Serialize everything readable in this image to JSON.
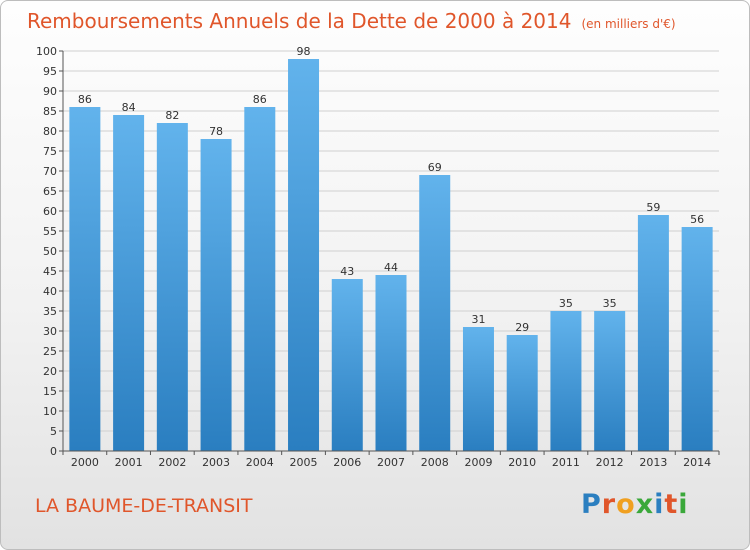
{
  "chart_data": {
    "type": "bar",
    "title": "Remboursements Annuels de la Dette de 2000 à 2014",
    "subtitle": "(en milliers d'€)",
    "categories": [
      "2000",
      "2001",
      "2002",
      "2003",
      "2004",
      "2005",
      "2006",
      "2007",
      "2008",
      "2009",
      "2010",
      "2011",
      "2012",
      "2013",
      "2014"
    ],
    "values": [
      86,
      84,
      82,
      78,
      86,
      98,
      43,
      44,
      69,
      31,
      29,
      35,
      35,
      59,
      56
    ],
    "xlabel": "",
    "ylabel": "",
    "ylim": [
      0,
      100
    ],
    "ytick_step": 5,
    "grid": true
  },
  "footer": {
    "city": "LA BAUME-DE-TRANSIT",
    "logo_letters": [
      "P",
      "r",
      "o",
      "x",
      "i",
      "t",
      "i"
    ],
    "logo_colors": [
      "#2b7fc0",
      "#e0562b",
      "#f0a020",
      "#3aa83a",
      "#2b7fc0",
      "#e0562b",
      "#3aa83a"
    ]
  },
  "colors": {
    "title": "#e0562b",
    "bar_top": "#62b3ec",
    "bar_bottom": "#2a7ec0",
    "grid": "#d0d0d0",
    "axis": "#555555"
  }
}
